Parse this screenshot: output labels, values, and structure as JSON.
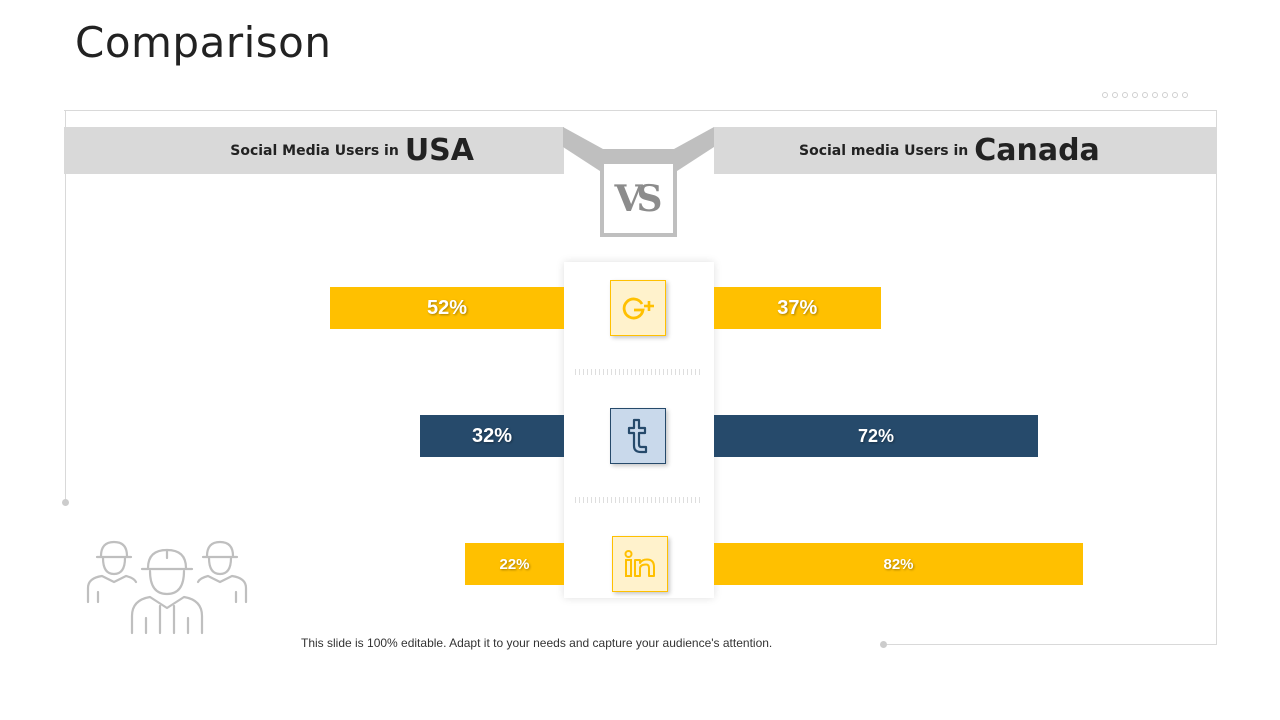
{
  "slide": {
    "title": "Comparison",
    "footer": "This slide is 100% editable. Adapt it to your needs and capture your audience's attention.",
    "vs_label": "VS"
  },
  "header": {
    "left": {
      "prefix": "Social Media Users  in",
      "country": "USA"
    },
    "right": {
      "prefix": "Social media Users  in",
      "country": "Canada"
    }
  },
  "colors": {
    "yellow": "#FFC000",
    "navy": "#264A6B",
    "band_gray": "#D9D9D9",
    "icon_yellow_bg": "#FFF2CC",
    "icon_blue_bg": "#C9D9EB"
  },
  "chart_data": {
    "type": "bar",
    "orientation": "horizontal-diverging",
    "categories": [
      "Google+",
      "Tumblr",
      "LinkedIn"
    ],
    "category_icons": [
      "google-plus-icon",
      "tumblr-icon",
      "linkedin-icon"
    ],
    "series": [
      {
        "name": "USA",
        "values": [
          52,
          32,
          22
        ],
        "labels": [
          "52%",
          "32%",
          "22%"
        ]
      },
      {
        "name": "Canada",
        "values": [
          37,
          72,
          82
        ],
        "labels": [
          "37%",
          "72%",
          "82%"
        ]
      }
    ],
    "bar_colors": [
      "#FFC000",
      "#264A6B",
      "#FFC000"
    ],
    "unit": "%"
  }
}
